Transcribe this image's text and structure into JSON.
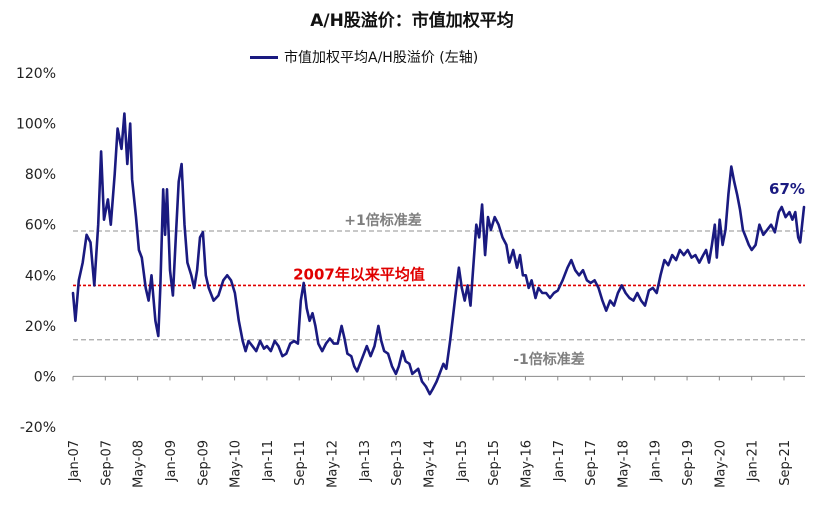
{
  "chart_data": {
    "type": "line",
    "title": "A/H股溢价：市值加权平均",
    "series": [
      {
        "name": "市值加权平均A/H股溢价 (左轴)",
        "color": "#1a1a80",
        "points": [
          [
            2007.0,
            33
          ],
          [
            2007.05,
            22
          ],
          [
            2007.12,
            38
          ],
          [
            2007.2,
            45
          ],
          [
            2007.28,
            56
          ],
          [
            2007.36,
            53
          ],
          [
            2007.44,
            36
          ],
          [
            2007.52,
            60
          ],
          [
            2007.58,
            89
          ],
          [
            2007.64,
            62
          ],
          [
            2007.72,
            70
          ],
          [
            2007.78,
            60
          ],
          [
            2007.86,
            80
          ],
          [
            2007.92,
            98
          ],
          [
            2008.0,
            90
          ],
          [
            2008.06,
            104
          ],
          [
            2008.12,
            84
          ],
          [
            2008.18,
            100
          ],
          [
            2008.22,
            78
          ],
          [
            2008.3,
            63
          ],
          [
            2008.36,
            50
          ],
          [
            2008.42,
            47
          ],
          [
            2008.5,
            35
          ],
          [
            2008.56,
            30
          ],
          [
            2008.62,
            40
          ],
          [
            2008.7,
            22
          ],
          [
            2008.76,
            16
          ],
          [
            2008.8,
            35
          ],
          [
            2008.86,
            74
          ],
          [
            2008.9,
            56
          ],
          [
            2008.94,
            74
          ],
          [
            2009.0,
            42
          ],
          [
            2009.06,
            32
          ],
          [
            2009.12,
            55
          ],
          [
            2009.18,
            77
          ],
          [
            2009.24,
            84
          ],
          [
            2009.3,
            60
          ],
          [
            2009.36,
            45
          ],
          [
            2009.44,
            40
          ],
          [
            2009.5,
            35
          ],
          [
            2009.56,
            42
          ],
          [
            2009.62,
            55
          ],
          [
            2009.68,
            57
          ],
          [
            2009.74,
            40
          ],
          [
            2009.8,
            35
          ],
          [
            2009.9,
            30
          ],
          [
            2010.0,
            32
          ],
          [
            2010.1,
            38
          ],
          [
            2010.18,
            40
          ],
          [
            2010.26,
            38
          ],
          [
            2010.34,
            33
          ],
          [
            2010.42,
            22
          ],
          [
            2010.5,
            14
          ],
          [
            2010.56,
            10
          ],
          [
            2010.62,
            14
          ],
          [
            2010.7,
            12
          ],
          [
            2010.78,
            10
          ],
          [
            2010.86,
            14
          ],
          [
            2010.94,
            11
          ],
          [
            2011.0,
            12
          ],
          [
            2011.08,
            10
          ],
          [
            2011.16,
            14
          ],
          [
            2011.24,
            12
          ],
          [
            2011.32,
            8
          ],
          [
            2011.4,
            9
          ],
          [
            2011.48,
            13
          ],
          [
            2011.56,
            14
          ],
          [
            2011.64,
            13
          ],
          [
            2011.7,
            30
          ],
          [
            2011.76,
            37
          ],
          [
            2011.82,
            27
          ],
          [
            2011.88,
            22
          ],
          [
            2011.94,
            25
          ],
          [
            2012.0,
            20
          ],
          [
            2012.06,
            13
          ],
          [
            2012.14,
            10
          ],
          [
            2012.22,
            13
          ],
          [
            2012.3,
            15
          ],
          [
            2012.38,
            13
          ],
          [
            2012.46,
            13
          ],
          [
            2012.54,
            20
          ],
          [
            2012.6,
            15
          ],
          [
            2012.66,
            9
          ],
          [
            2012.74,
            8
          ],
          [
            2012.8,
            4
          ],
          [
            2012.86,
            2
          ],
          [
            2012.92,
            5
          ],
          [
            2013.0,
            9
          ],
          [
            2013.06,
            12
          ],
          [
            2013.14,
            8
          ],
          [
            2013.22,
            12
          ],
          [
            2013.3,
            20
          ],
          [
            2013.36,
            14
          ],
          [
            2013.42,
            10
          ],
          [
            2013.5,
            9
          ],
          [
            2013.58,
            4
          ],
          [
            2013.66,
            1
          ],
          [
            2013.72,
            4
          ],
          [
            2013.8,
            10
          ],
          [
            2013.86,
            6
          ],
          [
            2013.94,
            5
          ],
          [
            2014.0,
            1
          ],
          [
            2014.06,
            2
          ],
          [
            2014.12,
            3
          ],
          [
            2014.2,
            -2
          ],
          [
            2014.28,
            -4
          ],
          [
            2014.36,
            -7
          ],
          [
            2014.42,
            -5
          ],
          [
            2014.5,
            -2
          ],
          [
            2014.58,
            2
          ],
          [
            2014.64,
            5
          ],
          [
            2014.7,
            3
          ],
          [
            2014.78,
            14
          ],
          [
            2014.84,
            24
          ],
          [
            2014.9,
            34
          ],
          [
            2014.96,
            43
          ],
          [
            2015.02,
            35
          ],
          [
            2015.08,
            30
          ],
          [
            2015.14,
            36
          ],
          [
            2015.2,
            28
          ],
          [
            2015.26,
            44
          ],
          [
            2015.32,
            60
          ],
          [
            2015.38,
            55
          ],
          [
            2015.44,
            68
          ],
          [
            2015.5,
            48
          ],
          [
            2015.56,
            63
          ],
          [
            2015.62,
            58
          ],
          [
            2015.7,
            63
          ],
          [
            2015.78,
            60
          ],
          [
            2015.86,
            55
          ],
          [
            2015.94,
            52
          ],
          [
            2016.0,
            45
          ],
          [
            2016.08,
            50
          ],
          [
            2016.16,
            43
          ],
          [
            2016.22,
            48
          ],
          [
            2016.28,
            40
          ],
          [
            2016.34,
            40
          ],
          [
            2016.4,
            35
          ],
          [
            2016.46,
            38
          ],
          [
            2016.54,
            31
          ],
          [
            2016.6,
            35
          ],
          [
            2016.68,
            33
          ],
          [
            2016.76,
            33
          ],
          [
            2016.84,
            31
          ],
          [
            2016.92,
            33
          ],
          [
            2017.0,
            34
          ],
          [
            2017.1,
            38
          ],
          [
            2017.2,
            43
          ],
          [
            2017.28,
            46
          ],
          [
            2017.36,
            42
          ],
          [
            2017.44,
            40
          ],
          [
            2017.52,
            42
          ],
          [
            2017.6,
            38
          ],
          [
            2017.68,
            37
          ],
          [
            2017.76,
            38
          ],
          [
            2017.84,
            35
          ],
          [
            2017.92,
            30
          ],
          [
            2018.0,
            26
          ],
          [
            2018.08,
            30
          ],
          [
            2018.16,
            28
          ],
          [
            2018.24,
            33
          ],
          [
            2018.32,
            36
          ],
          [
            2018.4,
            33
          ],
          [
            2018.48,
            31
          ],
          [
            2018.56,
            30
          ],
          [
            2018.64,
            33
          ],
          [
            2018.72,
            30
          ],
          [
            2018.8,
            28
          ],
          [
            2018.88,
            34
          ],
          [
            2018.96,
            35
          ],
          [
            2019.04,
            33
          ],
          [
            2019.12,
            40
          ],
          [
            2019.2,
            46
          ],
          [
            2019.28,
            44
          ],
          [
            2019.36,
            48
          ],
          [
            2019.44,
            46
          ],
          [
            2019.52,
            50
          ],
          [
            2019.6,
            48
          ],
          [
            2019.68,
            50
          ],
          [
            2019.76,
            47
          ],
          [
            2019.84,
            48
          ],
          [
            2019.92,
            45
          ],
          [
            2020.0,
            48
          ],
          [
            2020.06,
            50
          ],
          [
            2020.12,
            45
          ],
          [
            2020.18,
            52
          ],
          [
            2020.24,
            60
          ],
          [
            2020.28,
            47
          ],
          [
            2020.34,
            62
          ],
          [
            2020.4,
            52
          ],
          [
            2020.46,
            58
          ],
          [
            2020.52,
            72
          ],
          [
            2020.58,
            83
          ],
          [
            2020.64,
            77
          ],
          [
            2020.7,
            72
          ],
          [
            2020.76,
            66
          ],
          [
            2020.82,
            58
          ],
          [
            2020.88,
            55
          ],
          [
            2020.94,
            52
          ],
          [
            2021.0,
            50
          ],
          [
            2021.08,
            52
          ],
          [
            2021.16,
            60
          ],
          [
            2021.24,
            56
          ],
          [
            2021.32,
            58
          ],
          [
            2021.4,
            60
          ],
          [
            2021.48,
            57
          ],
          [
            2021.56,
            65
          ],
          [
            2021.62,
            67
          ],
          [
            2021.7,
            63
          ],
          [
            2021.78,
            65
          ],
          [
            2021.84,
            62
          ],
          [
            2021.9,
            65
          ],
          [
            2021.96,
            55
          ],
          [
            2022.0,
            53
          ],
          [
            2022.04,
            60
          ],
          [
            2022.08,
            67
          ]
        ]
      }
    ],
    "reference_lines": [
      {
        "label": "+1倍标准差",
        "value": 57.5,
        "color": "#a8a8a8",
        "style": "dashed",
        "label_color": "#7f7f7f"
      },
      {
        "label": "2007年以来平均值",
        "value": 36,
        "color": "#e00000",
        "style": "dotted",
        "label_color": "#e00000"
      },
      {
        "label": "-1倍标准差",
        "value": 14.5,
        "color": "#a8a8a8",
        "style": "dashed",
        "label_color": "#7f7f7f"
      }
    ],
    "end_label": "67%",
    "end_label_color": "#1a1a80",
    "ylim": [
      -20,
      120
    ],
    "yticks": [
      -20,
      0,
      20,
      40,
      60,
      80,
      100,
      120
    ],
    "ytick_labels": [
      "-20%",
      "0%",
      "20%",
      "40%",
      "60%",
      "80%",
      "100%",
      "120%"
    ],
    "xlim": [
      2007.0,
      2022.1
    ],
    "xticks": [
      2007.0,
      2007.667,
      2008.333,
      2009.0,
      2009.667,
      2010.333,
      2011.0,
      2011.667,
      2012.333,
      2013.0,
      2013.667,
      2014.333,
      2015.0,
      2015.667,
      2016.333,
      2017.0,
      2017.667,
      2018.333,
      2019.0,
      2019.667,
      2020.333,
      2021.0,
      2021.667
    ],
    "xtick_labels": [
      "Jan-07",
      "Sep-07",
      "May-08",
      "Jan-09",
      "Sep-09",
      "May-10",
      "Jan-11",
      "Sep-11",
      "May-12",
      "Jan-13",
      "Sep-13",
      "May-14",
      "Jan-15",
      "Sep-15",
      "May-16",
      "Jan-17",
      "Sep-17",
      "May-18",
      "Jan-19",
      "Sep-19",
      "May-20",
      "Jan-21",
      "Sep-21"
    ],
    "xlabel": "",
    "ylabel": "",
    "legend_position": "top-center"
  }
}
